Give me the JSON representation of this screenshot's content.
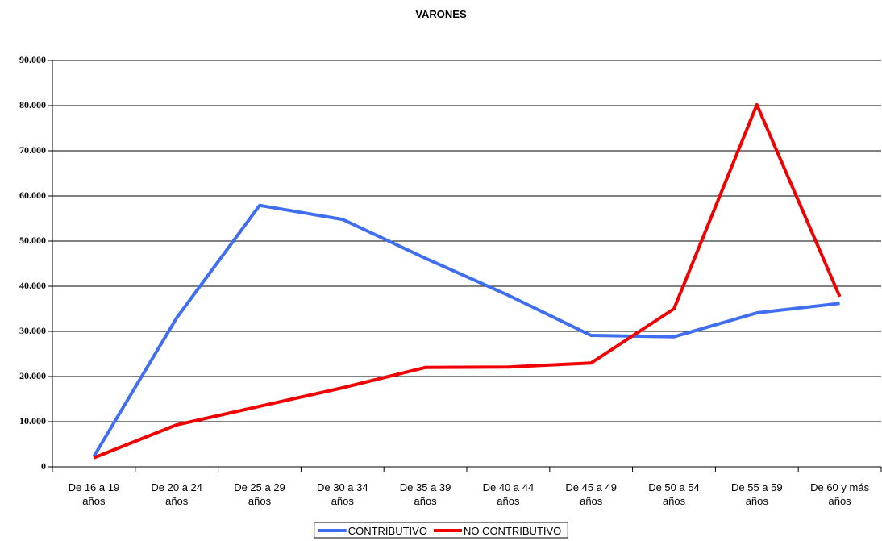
{
  "chart_data": {
    "type": "line",
    "title": "VARONES",
    "categories": [
      "De 16 a 19 años",
      "De 20 a 24 años",
      "De 25 a 29 años",
      "De 30 a 34 años",
      "De 35 a 39 años",
      "De 40 a 44 años",
      "De 45 a 49 años",
      "De 50 a 54 años",
      "De 55 a 59 años",
      "De 60 y más años"
    ],
    "series": [
      {
        "name": "CONTRIBUTIVO",
        "color": "#3f6ff0",
        "values": [
          2300,
          33000,
          57900,
          54800,
          46200,
          38000,
          29100,
          28800,
          34100,
          36200
        ]
      },
      {
        "name": "NO CONTRIBUTIVO",
        "color": "#f00000",
        "values": [
          2000,
          9300,
          13400,
          17500,
          22000,
          22100,
          23000,
          35000,
          80200,
          37700
        ]
      }
    ],
    "ylim": [
      0,
      90000
    ],
    "yticks": [
      0,
      {
        "value": 10000,
        "label": "10.000"
      },
      {
        "value": 20000,
        "label": "20.000"
      },
      {
        "value": 30000,
        "label": "30.000"
      },
      {
        "value": 40000,
        "label": "40.000"
      },
      {
        "value": 50000,
        "label": "50.000"
      },
      {
        "value": 60000,
        "label": "60.000"
      },
      {
        "value": 70000,
        "label": "70.000"
      },
      {
        "value": 80000,
        "label": "80.000"
      },
      {
        "value": 90000,
        "label": "90.000"
      }
    ],
    "grid": true,
    "legend": "bottom"
  }
}
